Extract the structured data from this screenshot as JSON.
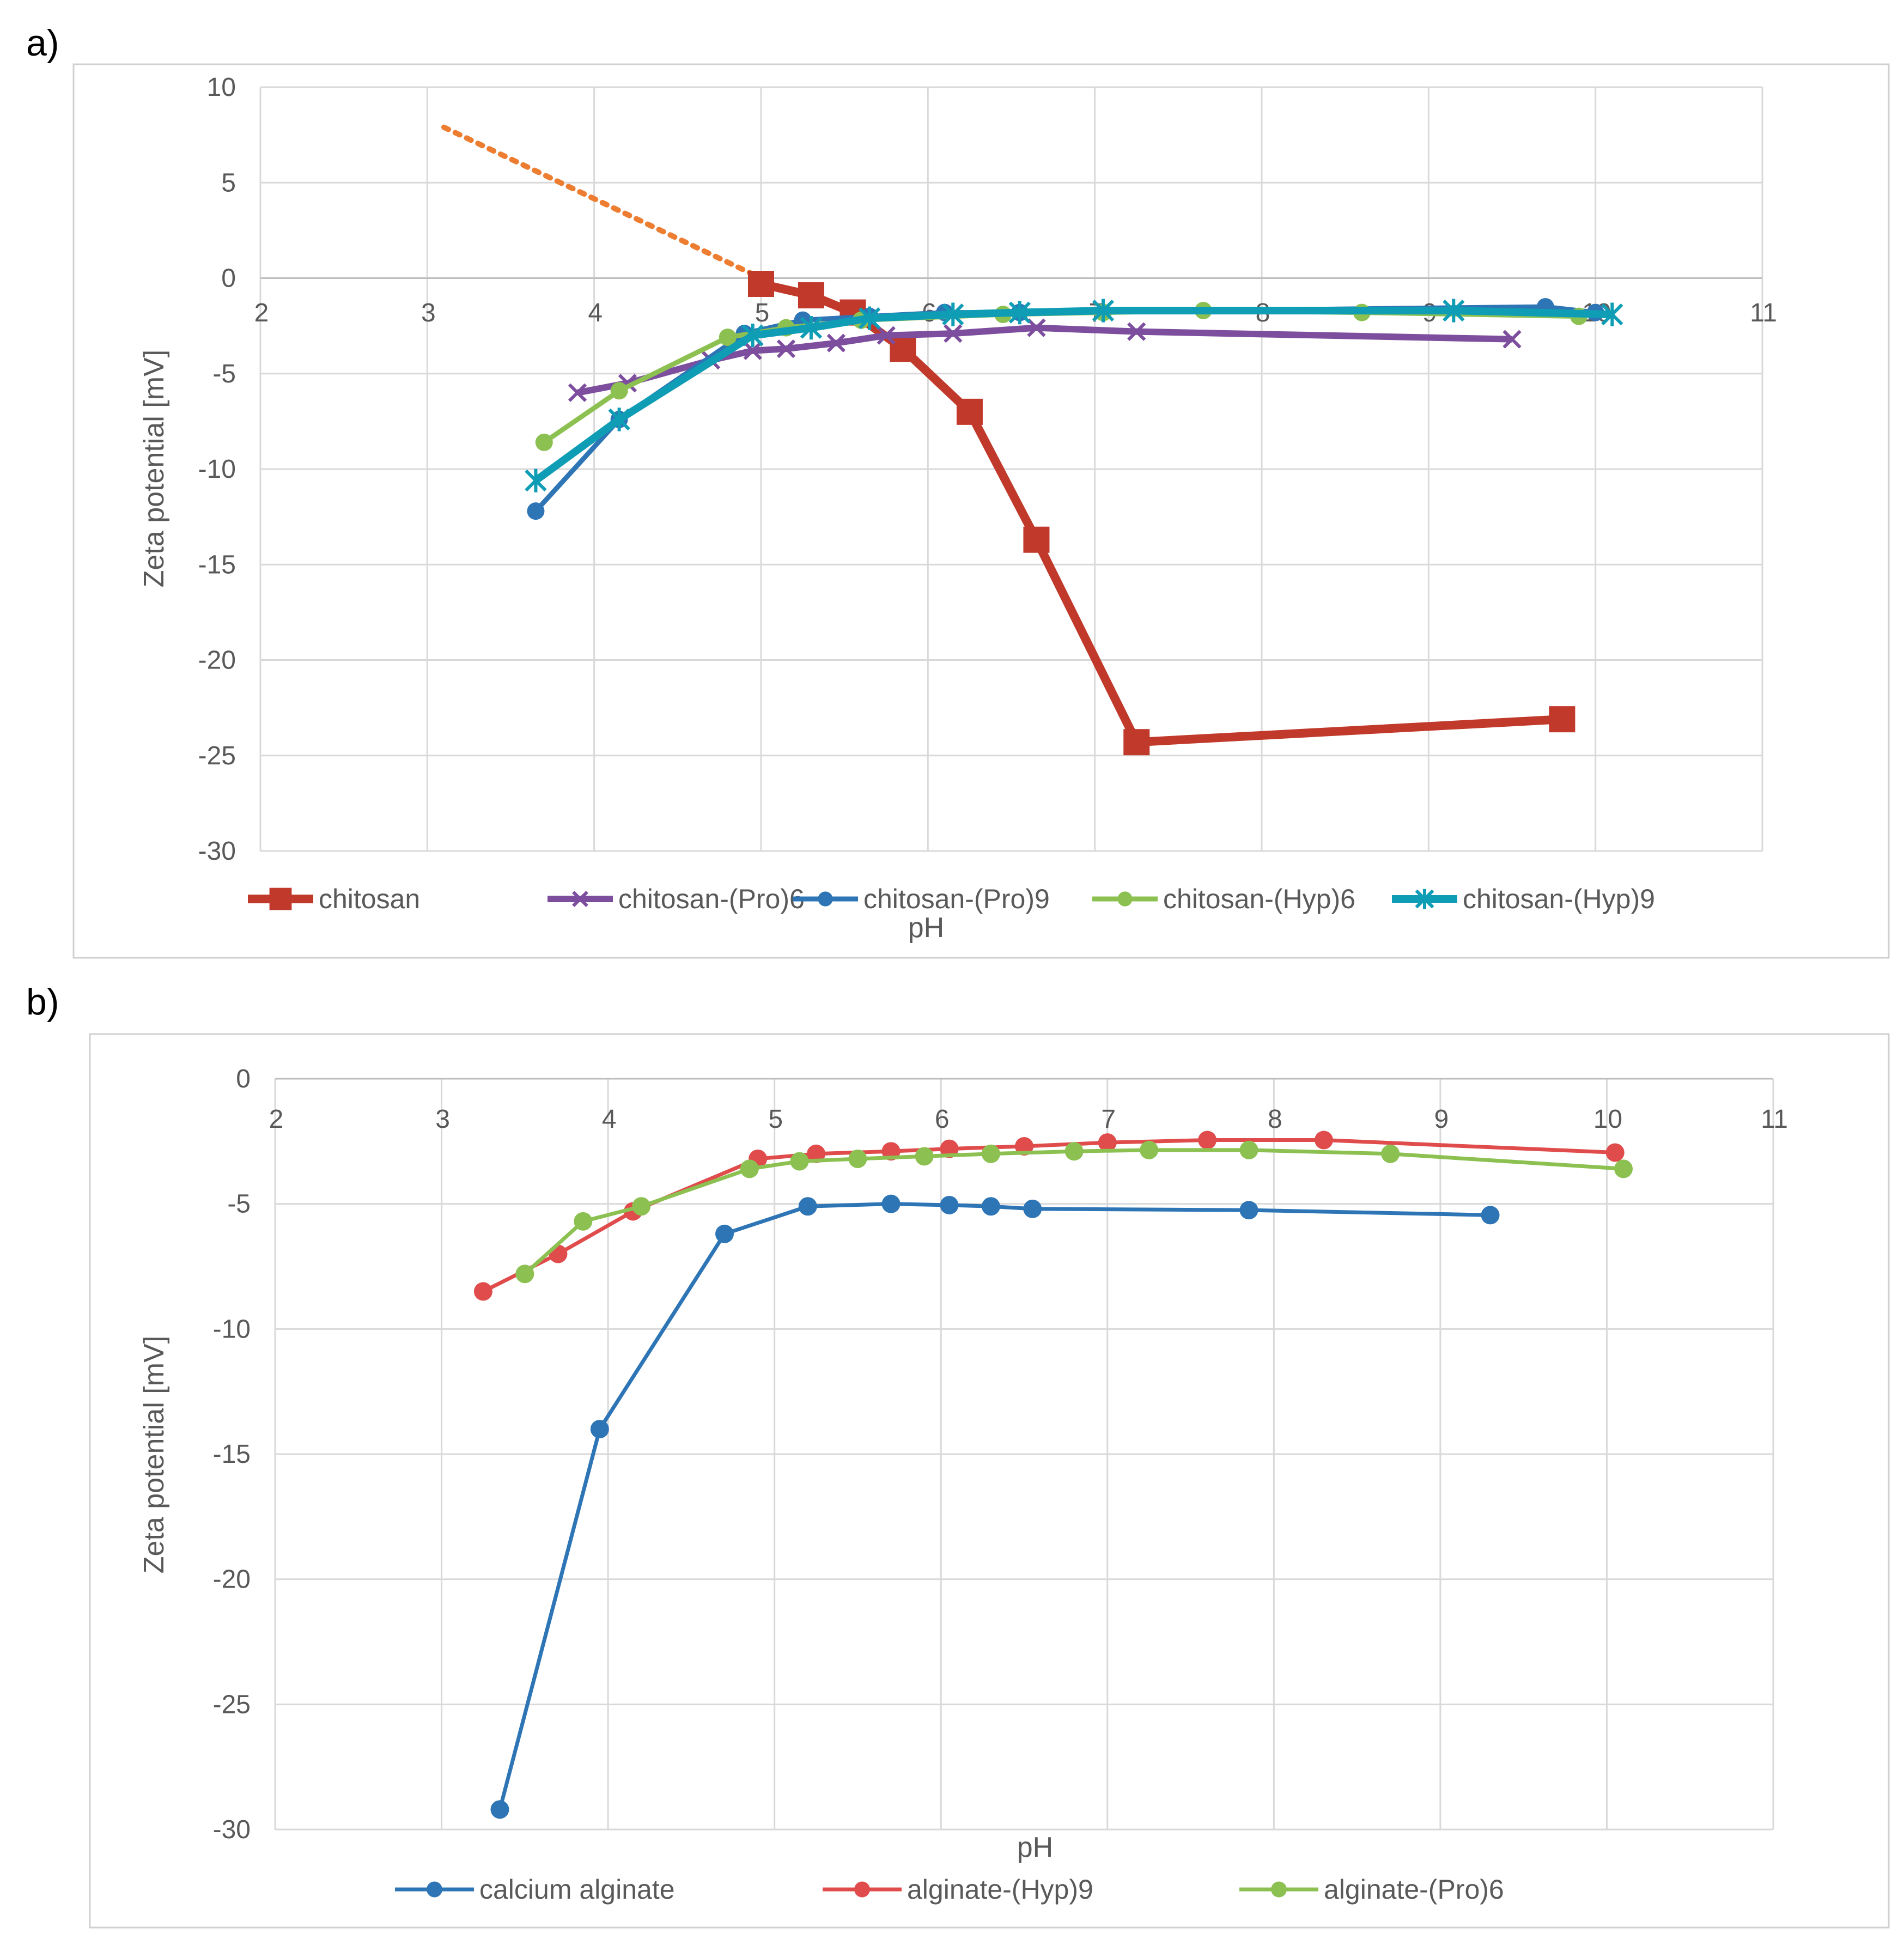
{
  "chart_data": [
    {
      "type": "line",
      "panel_label": "a)",
      "title": "",
      "xlabel": "pH",
      "ylabel": "Zeta potential [mV]",
      "xlim": [
        2,
        11
      ],
      "ylim": [
        -30,
        10
      ],
      "x_ticks": [
        "2",
        "3",
        "4",
        "5",
        "6",
        "7",
        "8",
        "9",
        "10",
        "11"
      ],
      "y_ticks": [
        "10",
        "5",
        "0",
        "-5",
        "-10",
        "-15",
        "-20",
        "-25",
        "-30"
      ],
      "grid": true,
      "legend_position": "bottom",
      "series": [
        {
          "name": "chitosan",
          "color": "#C0392B",
          "marker": "square",
          "x": [
            5.0,
            5.3,
            5.55,
            5.85,
            6.25,
            6.65,
            7.25,
            9.8
          ],
          "y": [
            -0.3,
            -0.9,
            -1.8,
            -3.7,
            -7.0,
            -13.7,
            -24.3,
            -23.1
          ]
        },
        {
          "name": "chitosan-(Pro)6",
          "color": "#7D4E9E",
          "marker": "x",
          "x": [
            3.9,
            4.2,
            4.7,
            4.95,
            5.15,
            5.45,
            5.75,
            6.15,
            6.65,
            7.25,
            9.5
          ],
          "y": [
            -6.0,
            -5.5,
            -4.3,
            -3.8,
            -3.7,
            -3.4,
            -3.0,
            -2.9,
            -2.6,
            -2.8,
            -3.2
          ]
        },
        {
          "name": "chitosan-(Pro)9",
          "color": "#2E75B6",
          "marker": "circle",
          "x": [
            3.65,
            4.15,
            4.9,
            5.25,
            5.65,
            6.1,
            6.55,
            9.7,
            10.0
          ],
          "y": [
            -12.2,
            -7.4,
            -2.9,
            -2.2,
            -2.0,
            -1.8,
            -1.8,
            -1.5,
            -1.8
          ]
        },
        {
          "name": "chitosan-(Hyp)6",
          "color": "#8CC152",
          "marker": "circle",
          "x": [
            3.7,
            4.15,
            4.8,
            5.15,
            5.6,
            6.45,
            7.05,
            7.65,
            8.6,
            9.9
          ],
          "y": [
            -8.6,
            -5.9,
            -3.1,
            -2.6,
            -2.2,
            -1.9,
            -1.8,
            -1.7,
            -1.8,
            -2.0
          ]
        },
        {
          "name": "chitosan-(Hyp)9",
          "color": "#0E9DB5",
          "marker": "star",
          "x": [
            3.65,
            4.15,
            4.95,
            5.3,
            5.65,
            6.15,
            6.55,
            7.05,
            9.15,
            10.1
          ],
          "y": [
            -10.6,
            -7.4,
            -3.0,
            -2.6,
            -2.1,
            -1.9,
            -1.8,
            -1.7,
            -1.7,
            -1.9
          ]
        }
      ],
      "trendline": {
        "color": "#ED7D31",
        "style": "dotted",
        "x": [
          3.1,
          5.0
        ],
        "y": [
          7.9,
          0.0
        ]
      }
    },
    {
      "type": "line",
      "panel_label": "b)",
      "title": "",
      "xlabel": "pH",
      "ylabel": "Zeta potential [mV]",
      "xlim": [
        2,
        11
      ],
      "ylim": [
        -30,
        0
      ],
      "x_ticks": [
        "2",
        "3",
        "4",
        "5",
        "6",
        "7",
        "8",
        "9",
        "10",
        "11"
      ],
      "y_ticks": [
        "0",
        "-5",
        "-10",
        "-15",
        "-20",
        "-25",
        "-30"
      ],
      "grid": true,
      "legend_position": "bottom",
      "series": [
        {
          "name": "calcium alginate",
          "color": "#2E75B6",
          "marker": "circle",
          "x": [
            3.35,
            3.95,
            4.7,
            5.2,
            5.7,
            6.05,
            6.3,
            6.55,
            7.85,
            9.3
          ],
          "y": [
            -29.2,
            -14.0,
            -6.2,
            -5.1,
            -5.0,
            -5.05,
            -5.1,
            -5.2,
            -5.25,
            -5.45
          ]
        },
        {
          "name": "alginate-(Hyp)9",
          "color": "#E04C4C",
          "marker": "circle",
          "x": [
            3.25,
            3.7,
            4.15,
            4.9,
            5.25,
            5.7,
            6.05,
            6.5,
            7.0,
            7.6,
            8.3,
            10.05
          ],
          "y": [
            -8.5,
            -7.0,
            -5.3,
            -3.2,
            -3.0,
            -2.9,
            -2.8,
            -2.7,
            -2.55,
            -2.45,
            -2.45,
            -2.95
          ]
        },
        {
          "name": "alginate-(Pro)6",
          "color": "#8CC152",
          "marker": "circle",
          "x": [
            3.5,
            3.85,
            4.2,
            4.85,
            5.15,
            5.5,
            5.9,
            6.3,
            6.8,
            7.25,
            7.85,
            8.7,
            10.1
          ],
          "y": [
            -7.8,
            -5.7,
            -5.1,
            -3.6,
            -3.3,
            -3.2,
            -3.1,
            -3.0,
            -2.9,
            -2.85,
            -2.85,
            -3.0,
            -3.6
          ]
        }
      ]
    }
  ]
}
